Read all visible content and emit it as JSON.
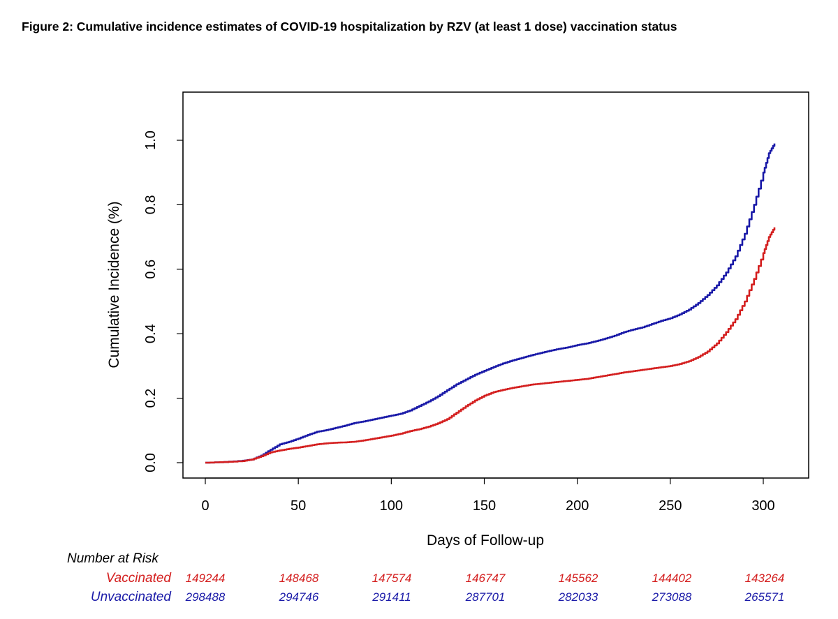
{
  "figure_title": "Figure 2:  Cumulative incidence estimates of COVID-19 hospitalization by RZV (at least 1 dose) vaccination status",
  "colors": {
    "vaccinated": "#d42020",
    "unvaccinated": "#1a1aa8",
    "axis": "#000000"
  },
  "chart_data": {
    "type": "line",
    "title": "",
    "xlabel": "Days of Follow-up",
    "ylabel": "Cumulative Incidence (%)",
    "xlim": [
      0,
      306
    ],
    "ylim": [
      0,
      1.0
    ],
    "x_ticks": [
      0,
      50,
      100,
      150,
      200,
      250,
      300
    ],
    "y_ticks": [
      0.0,
      0.2,
      0.4,
      0.6,
      0.8,
      1.0
    ],
    "x_tick_labels": [
      "0",
      "50",
      "100",
      "150",
      "200",
      "250",
      "300"
    ],
    "y_tick_labels": [
      "0.0",
      "0.2",
      "0.4",
      "0.6",
      "0.8",
      "1.0"
    ],
    "grid": false,
    "series": [
      {
        "name": "Unvaccinated",
        "x": [
          0,
          10,
          20,
          25,
          30,
          35,
          40,
          45,
          50,
          55,
          60,
          65,
          70,
          75,
          80,
          85,
          90,
          95,
          100,
          105,
          110,
          115,
          120,
          125,
          130,
          135,
          140,
          145,
          150,
          155,
          160,
          165,
          170,
          175,
          180,
          185,
          190,
          195,
          200,
          205,
          210,
          215,
          220,
          225,
          230,
          235,
          240,
          245,
          250,
          255,
          260,
          265,
          270,
          275,
          280,
          285,
          290,
          295,
          300,
          303,
          306
        ],
        "values": [
          0.0,
          0.002,
          0.006,
          0.01,
          0.022,
          0.04,
          0.057,
          0.065,
          0.075,
          0.086,
          0.096,
          0.101,
          0.108,
          0.115,
          0.123,
          0.128,
          0.134,
          0.14,
          0.146,
          0.152,
          0.162,
          0.176,
          0.19,
          0.206,
          0.225,
          0.243,
          0.258,
          0.273,
          0.285,
          0.297,
          0.308,
          0.317,
          0.325,
          0.333,
          0.34,
          0.347,
          0.353,
          0.358,
          0.365,
          0.37,
          0.377,
          0.385,
          0.394,
          0.405,
          0.413,
          0.42,
          0.43,
          0.44,
          0.448,
          0.46,
          0.475,
          0.495,
          0.52,
          0.55,
          0.59,
          0.64,
          0.71,
          0.8,
          0.9,
          0.96,
          0.99
        ]
      },
      {
        "name": "Vaccinated",
        "x": [
          0,
          10,
          20,
          25,
          30,
          35,
          40,
          45,
          50,
          55,
          60,
          65,
          70,
          75,
          80,
          85,
          90,
          95,
          100,
          105,
          110,
          115,
          120,
          125,
          130,
          135,
          140,
          145,
          150,
          155,
          160,
          165,
          170,
          175,
          180,
          185,
          190,
          195,
          200,
          205,
          210,
          215,
          220,
          225,
          230,
          235,
          240,
          245,
          250,
          255,
          260,
          265,
          270,
          275,
          280,
          285,
          290,
          295,
          300,
          303,
          306
        ],
        "values": [
          0.0,
          0.002,
          0.005,
          0.01,
          0.02,
          0.032,
          0.038,
          0.043,
          0.047,
          0.052,
          0.057,
          0.06,
          0.062,
          0.063,
          0.065,
          0.069,
          0.074,
          0.079,
          0.084,
          0.09,
          0.098,
          0.104,
          0.112,
          0.122,
          0.135,
          0.155,
          0.175,
          0.193,
          0.208,
          0.219,
          0.226,
          0.232,
          0.237,
          0.242,
          0.245,
          0.248,
          0.251,
          0.254,
          0.257,
          0.26,
          0.265,
          0.27,
          0.275,
          0.28,
          0.284,
          0.288,
          0.292,
          0.296,
          0.3,
          0.306,
          0.315,
          0.328,
          0.345,
          0.37,
          0.405,
          0.445,
          0.5,
          0.57,
          0.65,
          0.7,
          0.73
        ]
      }
    ]
  },
  "risk_table": {
    "heading": "Number at Risk",
    "groups": [
      {
        "label": "Vaccinated",
        "color": "#d42020",
        "values": [
          "149244",
          "148468",
          "147574",
          "146747",
          "145562",
          "144402",
          "143264"
        ]
      },
      {
        "label": "Unvaccinated",
        "color": "#1a1aa8",
        "values": [
          "298488",
          "294746",
          "291411",
          "287701",
          "282033",
          "273088",
          "265571"
        ]
      }
    ]
  }
}
